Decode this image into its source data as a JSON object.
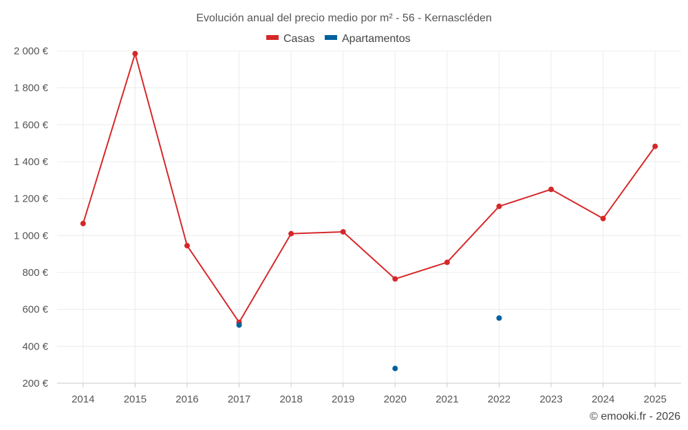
{
  "chart_data": {
    "type": "line",
    "title": "Evolución anual del precio medio por m² - 56 - Kernascléden",
    "categories": [
      "2014",
      "2015",
      "2016",
      "2017",
      "2018",
      "2019",
      "2020",
      "2021",
      "2022",
      "2023",
      "2024",
      "2025"
    ],
    "series": [
      {
        "name": "Casas",
        "color": "#d62728",
        "style": "line-markers",
        "values": [
          1065,
          1985,
          945,
          530,
          1010,
          1020,
          765,
          855,
          1158,
          1250,
          1092,
          1483
        ]
      },
      {
        "name": "Apartamentos",
        "color": "#00619e",
        "style": "markers",
        "values": [
          null,
          null,
          null,
          515,
          null,
          null,
          280,
          null,
          553,
          null,
          null,
          null
        ]
      }
    ],
    "yticks": [
      "200 €",
      "400 €",
      "600 €",
      "800 €",
      "1 000 €",
      "1 200 €",
      "1 400 €",
      "1 600 €",
      "1 800 €",
      "2 000 €"
    ],
    "ytick_values": [
      200,
      400,
      600,
      800,
      1000,
      1200,
      1400,
      1600,
      1800,
      2000
    ],
    "ylim": [
      200,
      2000
    ],
    "xlabel": "",
    "ylabel": "",
    "grid": true,
    "legend_position": "top-center"
  },
  "credit": "© emooki.fr - 2026"
}
